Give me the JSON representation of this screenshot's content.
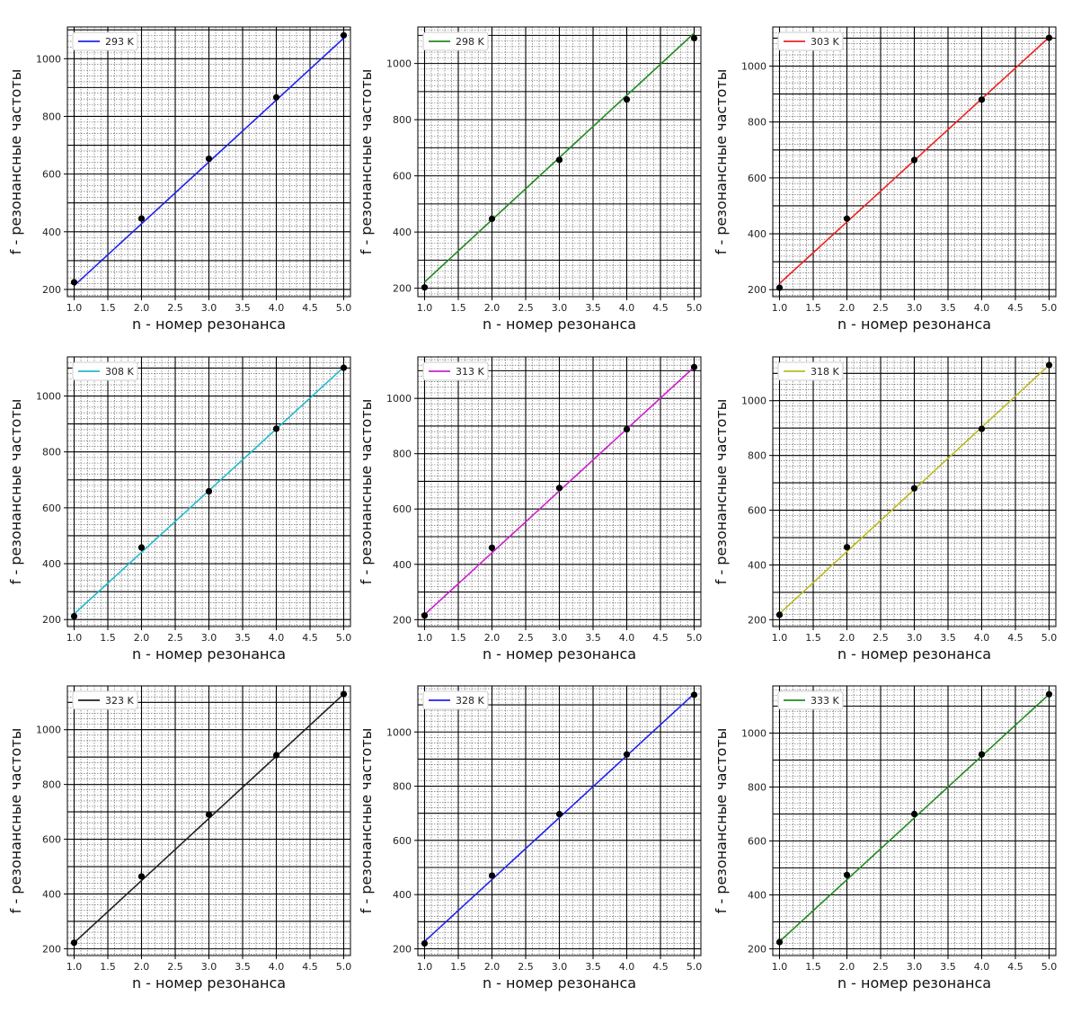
{
  "chart_data": [
    {
      "type": "line",
      "legend": "293 K",
      "color": "#2222ee",
      "x": [
        1,
        2,
        3,
        4,
        5
      ],
      "y": [
        225,
        446,
        653,
        866,
        1081
      ],
      "fit": [
        213,
        1071
      ],
      "ylim": [
        175,
        1110
      ],
      "yticks": [
        200,
        400,
        600,
        800,
        1000
      ],
      "xlabel": "n - номер резонанса",
      "ylabel": "f - резонансные частоты",
      "legend_loc": "upper-left",
      "grid": true
    },
    {
      "type": "line",
      "legend": "298 K",
      "color": "#228b22",
      "x": [
        1,
        2,
        3,
        4,
        5
      ],
      "y": [
        203,
        447,
        657,
        872,
        1090
      ],
      "fit": [
        222,
        1108
      ],
      "ylim": [
        170,
        1130
      ],
      "yticks": [
        200,
        400,
        600,
        800,
        1000
      ],
      "xlabel": "n - номер резонанса",
      "ylabel": "f - резонансные частоты",
      "legend_loc": "upper-left",
      "grid": true
    },
    {
      "type": "line",
      "legend": "303 K",
      "color": "#ee2222",
      "x": [
        1,
        2,
        3,
        4,
        5
      ],
      "y": [
        207,
        454,
        664,
        880,
        1101
      ],
      "fit": [
        222,
        1103
      ],
      "ylim": [
        175,
        1140
      ],
      "yticks": [
        200,
        400,
        600,
        800,
        1000
      ],
      "xlabel": "n - номер резонанса",
      "ylabel": "f - резонансные частоты",
      "legend_loc": "upper-left",
      "grid": true
    },
    {
      "type": "line",
      "legend": "308 K",
      "color": "#22bbcc",
      "x": [
        1,
        2,
        3,
        4,
        5
      ],
      "y": [
        212,
        458,
        659,
        883,
        1101
      ],
      "fit": [
        220,
        1103
      ],
      "ylim": [
        175,
        1140
      ],
      "yticks": [
        200,
        400,
        600,
        800,
        1000
      ],
      "xlabel": "n - номер резонанса",
      "ylabel": "f - резонансные частоты",
      "legend_loc": "upper-left",
      "grid": true
    },
    {
      "type": "line",
      "legend": "313 K",
      "color": "#cc22cc",
      "x": [
        1,
        2,
        3,
        4,
        5
      ],
      "y": [
        215,
        460,
        676,
        888,
        1113
      ],
      "fit": [
        218,
        1113
      ],
      "ylim": [
        175,
        1150
      ],
      "yticks": [
        200,
        400,
        600,
        800,
        1000
      ],
      "xlabel": "n - номер резонанса",
      "ylabel": "f - резонансные частоты",
      "legend_loc": "upper-left",
      "grid": true
    },
    {
      "type": "line",
      "legend": "318 K",
      "color": "#bbbb22",
      "x": [
        1,
        2,
        3,
        4,
        5
      ],
      "y": [
        218,
        465,
        680,
        897,
        1130
      ],
      "fit": [
        222,
        1130
      ],
      "ylim": [
        175,
        1160
      ],
      "yticks": [
        200,
        400,
        600,
        800,
        1000
      ],
      "xlabel": "n - номер резонанса",
      "ylabel": "f - резонансные частоты",
      "legend_loc": "upper-left",
      "grid": true
    },
    {
      "type": "line",
      "legend": "323 K",
      "color": "#222222",
      "x": [
        1,
        2,
        3,
        4,
        5
      ],
      "y": [
        222,
        464,
        690,
        907,
        1130
      ],
      "fit": [
        222,
        1130
      ],
      "ylim": [
        175,
        1160
      ],
      "yticks": [
        200,
        400,
        600,
        800,
        1000
      ],
      "xlabel": "n - номер резонанса",
      "ylabel": "f - резонансные частоты",
      "legend_loc": "upper-left",
      "grid": true
    },
    {
      "type": "line",
      "legend": "328 K",
      "color": "#2222ee",
      "x": [
        1,
        2,
        3,
        4,
        5
      ],
      "y": [
        220,
        470,
        697,
        917,
        1137
      ],
      "fit": [
        227,
        1141
      ],
      "ylim": [
        175,
        1170
      ],
      "yticks": [
        200,
        400,
        600,
        800,
        1000
      ],
      "xlabel": "n - номер резонанса",
      "ylabel": "f - резонансные частоты",
      "legend_loc": "upper-left",
      "grid": true
    },
    {
      "type": "line",
      "legend": "333 K",
      "color": "#228b22",
      "x": [
        1,
        2,
        3,
        4,
        5
      ],
      "y": [
        225,
        474,
        700,
        921,
        1144
      ],
      "fit": [
        227,
        1144
      ],
      "ylim": [
        175,
        1175
      ],
      "yticks": [
        200,
        400,
        600,
        800,
        1000
      ],
      "xlabel": "n - номер резонанса",
      "ylabel": "f - резонансные частоты",
      "legend_loc": "upper-left",
      "grid": true
    }
  ]
}
